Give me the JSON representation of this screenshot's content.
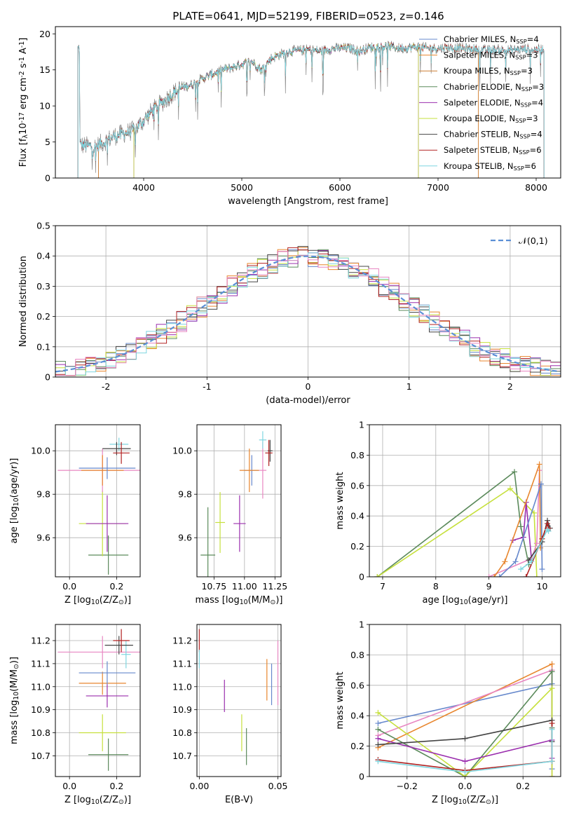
{
  "figure": {
    "title": "PLATE=0641, MJD=52199, FIBERID=0523, z=0.146"
  },
  "chart_data": [
    {
      "id": "spectrum",
      "type": "line",
      "xlabel": "wavelength [Angstrom, rest frame]",
      "ylabel": "Flux [f$_\\lambda$10$^{-17}$ erg cm$^{-2}$ s$^{-1}$ A$^{-1}$]",
      "xlim": [
        3100,
        8250
      ],
      "ylim": [
        0,
        21
      ],
      "xticks": [
        4000,
        5000,
        6000,
        7000,
        8000
      ],
      "yticks": [
        0,
        5,
        10,
        15,
        20
      ],
      "grid": false,
      "legend": "top-right",
      "spectrum_points": [
        [
          3350,
          4.6
        ],
        [
          3500,
          4.3
        ],
        [
          3700,
          5.8
        ],
        [
          3800,
          6.2
        ],
        [
          3900,
          6.6
        ],
        [
          4000,
          8.0
        ],
        [
          4100,
          9.5
        ],
        [
          4200,
          10.6
        ],
        [
          4300,
          11.8
        ],
        [
          4400,
          12.6
        ],
        [
          4500,
          13.0
        ],
        [
          4600,
          13.8
        ],
        [
          4700,
          14.4
        ],
        [
          4800,
          15.0
        ],
        [
          4900,
          15.3
        ],
        [
          5000,
          15.8
        ],
        [
          5100,
          16.2
        ],
        [
          5200,
          15.0
        ],
        [
          5300,
          16.6
        ],
        [
          5400,
          17.2
        ],
        [
          5500,
          17.6
        ],
        [
          5600,
          17.7
        ],
        [
          5700,
          17.8
        ],
        [
          5800,
          17.6
        ],
        [
          5900,
          17.9
        ],
        [
          6000,
          18.0
        ],
        [
          6100,
          18.0
        ],
        [
          6200,
          17.6
        ],
        [
          6300,
          18.1
        ],
        [
          6400,
          18.2
        ],
        [
          6500,
          18.3
        ],
        [
          6600,
          18.0
        ],
        [
          6700,
          18.1
        ],
        [
          6800,
          18.2
        ],
        [
          6900,
          18.0
        ],
        [
          7000,
          18.0
        ],
        [
          7100,
          18.1
        ],
        [
          7200,
          18.0
        ],
        [
          7300,
          17.9
        ],
        [
          7400,
          17.8
        ],
        [
          7500,
          17.7
        ],
        [
          7600,
          17.8
        ],
        [
          7700,
          17.7
        ],
        [
          7800,
          17.8
        ],
        [
          7900,
          17.9
        ],
        [
          8000,
          17.8
        ],
        [
          8080,
          17.9
        ]
      ],
      "series": [
        {
          "name": "Chabrier MILES, N$_{SSP}$=4",
          "color": "#6688cc",
          "range": [
            3540,
            6800
          ]
        },
        {
          "name": "Salpeter MILES, N$_{SSP}$=3",
          "color": "#e8862e",
          "range": [
            3540,
            7410
          ]
        },
        {
          "name": "Kroupa MILES, N$_{SSP}$=3",
          "color": "#cd7f32",
          "range": [
            3540,
            7410
          ]
        },
        {
          "name": "Chabrier ELODIE, N$_{SSP}$=3",
          "color": "#5b8a5b",
          "range": [
            3900,
            6800
          ]
        },
        {
          "name": "Salpeter ELODIE, N$_{SSP}$=4",
          "color": "#9b2fae",
          "range": [
            3900,
            6800
          ]
        },
        {
          "name": "Kroupa ELODIE, N$_{SSP}$=3",
          "color": "#c6e03c",
          "range": [
            3900,
            6800
          ]
        },
        {
          "name": "Chabrier STELIB, N$_{SSP}$=4",
          "color": "#444444",
          "range": [
            3330,
            8080
          ]
        },
        {
          "name": "Salpeter STELIB, N$_{SSP}$=6",
          "color": "#b22222",
          "range": [
            3330,
            8080
          ]
        },
        {
          "name": "Kroupa STELIB, N$_{SSP}$=6",
          "color": "#7fd6e0",
          "range": [
            3330,
            8080
          ]
        }
      ],
      "data_color": "#888888"
    },
    {
      "id": "residuals",
      "type": "histogram",
      "xlabel": "(data-model)/error",
      "ylabel": "Normed distribution",
      "xlim": [
        -2.5,
        2.5
      ],
      "ylim": [
        0,
        0.5
      ],
      "xticks": [
        -2,
        -1,
        0,
        1,
        2
      ],
      "yticks": [
        0.0,
        0.1,
        0.2,
        0.3,
        0.4,
        0.5
      ],
      "grid": true,
      "legend": "top-right",
      "legend_label": "$\\mathcal{N}(0,1)$",
      "bin_width": 0.1,
      "gaussian": {
        "mean": 0,
        "sigma": 1
      },
      "step_colors": [
        "#6688cc",
        "#e8862e",
        "#5b8a5b",
        "#9b2fae",
        "#c6e03c",
        "#444444",
        "#b22222",
        "#7fd6e0",
        "#e887c2"
      ]
    },
    {
      "id": "z_vs_age",
      "type": "errorbar",
      "xlabel": "Z [log$_{10}$(Z/Z$_\\odot$)]",
      "ylabel": "age  [log$_{10}$(age/yr)]",
      "xlim": [
        -0.06,
        0.3
      ],
      "ylim": [
        9.42,
        10.12
      ],
      "xticks": [
        0.0,
        0.2
      ],
      "xticklabels": [
        "0.0",
        "0.2"
      ],
      "yticks": [
        9.6,
        9.8,
        10.0
      ],
      "yticklabels": [
        "9.6",
        "9.8",
        "10.0"
      ],
      "grid": true,
      "points": [
        {
          "x": 0.165,
          "y": 9.52,
          "xerr": 0.085,
          "yerr": 0.09,
          "color": "#5b8a5b"
        },
        {
          "x": 0.14,
          "y": 9.665,
          "xerr": 0.1,
          "yerr": 0.15,
          "color": "#c6e03c"
        },
        {
          "x": 0.16,
          "y": 9.665,
          "xerr": 0.09,
          "yerr": 0.13,
          "color": "#9b2fae"
        },
        {
          "x": 0.14,
          "y": 9.91,
          "xerr": 0.19,
          "yerr": 0.1,
          "color": "#e887c2"
        },
        {
          "x": 0.14,
          "y": 9.91,
          "xerr": 0.09,
          "yerr": 0.07,
          "color": "#e8862e"
        },
        {
          "x": 0.16,
          "y": 9.92,
          "xerr": 0.12,
          "yerr": 0.05,
          "color": "#6688cc"
        },
        {
          "x": 0.21,
          "y": 10.03,
          "xerr": 0.04,
          "yerr": 0.03,
          "color": "#7fd6e0"
        },
        {
          "x": 0.2,
          "y": 10.01,
          "xerr": 0.06,
          "yerr": 0.03,
          "color": "#444444"
        },
        {
          "x": 0.22,
          "y": 9.99,
          "xerr": 0.035,
          "yerr": 0.05,
          "color": "#b22222"
        }
      ]
    },
    {
      "id": "mass_vs_age",
      "type": "errorbar",
      "xlabel": "mass [log$_{10}$(M/M$_\\odot$)]",
      "ylabel": "",
      "xlim": [
        10.61,
        11.3
      ],
      "ylim": [
        9.42,
        10.12
      ],
      "xticks": [
        10.75,
        11.0,
        11.25
      ],
      "xticklabels": [
        "10.75",
        "11.00",
        "11.25"
      ],
      "yticks": [
        9.6,
        9.8,
        10.0
      ],
      "yticklabels": [
        "9.6",
        "9.8",
        "10.0"
      ],
      "grid": true,
      "points": [
        {
          "x": 10.7,
          "y": 9.52,
          "xerr": 0.06,
          "yerr": 0.22,
          "color": "#5b8a5b"
        },
        {
          "x": 10.8,
          "y": 9.67,
          "xerr": 0.04,
          "yerr": 0.14,
          "color": "#c6e03c"
        },
        {
          "x": 10.96,
          "y": 9.665,
          "xerr": 0.05,
          "yerr": 0.13,
          "color": "#9b2fae"
        },
        {
          "x": 11.06,
          "y": 9.91,
          "xerr": 0.06,
          "yerr": 0.07,
          "color": "#6688cc"
        },
        {
          "x": 11.04,
          "y": 9.91,
          "xerr": 0.08,
          "yerr": 0.1,
          "color": "#e8862e"
        },
        {
          "x": 11.15,
          "y": 9.91,
          "xerr": 0.03,
          "yerr": 0.13,
          "color": "#e887c2"
        },
        {
          "x": 11.15,
          "y": 10.05,
          "xerr": 0.03,
          "yerr": 0.04,
          "color": "#7fd6e0"
        },
        {
          "x": 11.21,
          "y": 10.0,
          "xerr": 0.02,
          "yerr": 0.05,
          "color": "#444444"
        },
        {
          "x": 11.2,
          "y": 9.99,
          "xerr": 0.03,
          "yerr": 0.06,
          "color": "#b22222"
        }
      ]
    },
    {
      "id": "age_vs_weight",
      "type": "line",
      "xlabel": "age  [log$_{10}$(age/yr)]",
      "ylabel": "mass weight",
      "xlim": [
        6.75,
        10.35
      ],
      "ylim": [
        0,
        1
      ],
      "xticks": [
        7,
        8,
        9,
        10
      ],
      "yticks": [
        0.0,
        0.2,
        0.4,
        0.6,
        0.8,
        1.0
      ],
      "grid": true,
      "series": [
        {
          "color": "#5b8a5b",
          "x": [
            6.9,
            9.48,
            9.6,
            9.75
          ],
          "y": [
            0.0,
            0.69,
            0.33,
            0.08
          ]
        },
        {
          "color": "#c6e03c",
          "x": [
            6.9,
            9.4,
            9.85,
            9.9
          ],
          "y": [
            0.0,
            0.58,
            0.42,
            0.0
          ]
        },
        {
          "color": "#9b2fae",
          "x": [
            9.45,
            9.65,
            9.7,
            9.8
          ],
          "y": [
            0.24,
            0.26,
            0.49,
            0.12
          ]
        },
        {
          "color": "#e887c2",
          "x": [
            9.0,
            9.8,
            9.9,
            9.95
          ],
          "y": [
            0.0,
            0.12,
            0.22,
            0.7
          ]
        },
        {
          "color": "#e8862e",
          "x": [
            9.1,
            9.3,
            9.95,
            9.97
          ],
          "y": [
            0.0,
            0.1,
            0.74,
            0.19
          ]
        },
        {
          "color": "#6688cc",
          "x": [
            9.2,
            9.5,
            9.98,
            10.0
          ],
          "y": [
            0.0,
            0.1,
            0.61,
            0.05
          ]
        },
        {
          "color": "#444444",
          "x": [
            9.75,
            10.0,
            10.1,
            10.15
          ],
          "y": [
            0.11,
            0.23,
            0.37,
            0.32
          ]
        },
        {
          "color": "#b22222",
          "x": [
            9.7,
            10.0,
            10.1,
            10.12
          ],
          "y": [
            0.0,
            0.25,
            0.35,
            0.32
          ]
        },
        {
          "color": "#7fd6e0",
          "x": [
            9.6,
            9.8,
            10.1,
            10.12
          ],
          "y": [
            0.05,
            0.1,
            0.31,
            0.3
          ]
        }
      ]
    },
    {
      "id": "z_vs_mass",
      "type": "errorbar",
      "xlabel": "Z [log$_{10}$(Z/Z$_\\odot$)]",
      "ylabel": "mass [log$_{10}$(M/M$_\\odot$)]",
      "xlim": [
        -0.06,
        0.3
      ],
      "ylim": [
        10.61,
        11.27
      ],
      "xticks": [
        0.0,
        0.2
      ],
      "xticklabels": [
        "0.0",
        "0.2"
      ],
      "yticks": [
        10.7,
        10.8,
        10.9,
        11.0,
        11.1,
        11.2
      ],
      "yticklabels": [
        "10.7",
        "10.8",
        "10.9",
        "11.0",
        "11.1",
        "11.2"
      ],
      "grid": true,
      "points": [
        {
          "x": 0.165,
          "y": 10.705,
          "xerr": 0.085,
          "yerr": 0.07,
          "color": "#5b8a5b"
        },
        {
          "x": 0.14,
          "y": 10.8,
          "xerr": 0.1,
          "yerr": 0.08,
          "color": "#c6e03c"
        },
        {
          "x": 0.16,
          "y": 10.96,
          "xerr": 0.09,
          "yerr": 0.05,
          "color": "#9b2fae"
        },
        {
          "x": 0.14,
          "y": 11.015,
          "xerr": 0.1,
          "yerr": 0.05,
          "color": "#e8862e"
        },
        {
          "x": 0.16,
          "y": 11.06,
          "xerr": 0.12,
          "yerr": 0.05,
          "color": "#6688cc"
        },
        {
          "x": 0.14,
          "y": 11.15,
          "xerr": 0.19,
          "yerr": 0.07,
          "color": "#e887c2"
        },
        {
          "x": 0.24,
          "y": 11.14,
          "xerr": 0.02,
          "yerr": 0.06,
          "color": "#7fd6e0"
        },
        {
          "x": 0.21,
          "y": 11.18,
          "xerr": 0.06,
          "yerr": 0.04,
          "color": "#444444"
        },
        {
          "x": 0.22,
          "y": 11.2,
          "xerr": 0.035,
          "yerr": 0.05,
          "color": "#b22222"
        }
      ]
    },
    {
      "id": "ebv_vs_mass",
      "type": "errorbar",
      "xlabel": "E(B-V)",
      "ylabel": "",
      "xlim": [
        -0.0015,
        0.052
      ],
      "ylim": [
        10.61,
        11.27
      ],
      "xticks": [
        0.0,
        0.05
      ],
      "xticklabels": [
        "0.00",
        "0.05"
      ],
      "yticks": [
        10.7,
        10.8,
        10.9,
        11.0,
        11.1,
        11.2
      ],
      "yticklabels": [
        "10.7",
        "10.8",
        "10.9",
        "11.0",
        "11.1",
        "11.2"
      ],
      "grid": true,
      "points": [
        {
          "x": 0.0,
          "y": 11.2,
          "xerr": 0.0,
          "yerr": 0.05,
          "color": "#b22222"
        },
        {
          "x": 0.0,
          "y": 11.12,
          "xerr": 0.0,
          "yerr": 0.04,
          "color": "#7fd6e0"
        },
        {
          "x": 0.016,
          "y": 10.96,
          "xerr": 0.0,
          "yerr": 0.07,
          "color": "#9b2fae"
        },
        {
          "x": 0.027,
          "y": 10.8,
          "xerr": 0.0,
          "yerr": 0.08,
          "color": "#c6e03c"
        },
        {
          "x": 0.03,
          "y": 10.74,
          "xerr": 0.0,
          "yerr": 0.08,
          "color": "#5b8a5b"
        },
        {
          "x": 0.043,
          "y": 11.03,
          "xerr": 0.0,
          "yerr": 0.09,
          "color": "#e8862e"
        },
        {
          "x": 0.046,
          "y": 11.01,
          "xerr": 0.0,
          "yerr": 0.09,
          "color": "#6688cc"
        },
        {
          "x": 0.05,
          "y": 11.06,
          "xerr": 0.0,
          "yerr": 0.14,
          "color": "#e887c2"
        }
      ]
    },
    {
      "id": "z_vs_weight",
      "type": "line",
      "xlabel": "Z [log$_{10}$(Z/Z$_\\odot$)]",
      "ylabel": "mass weight",
      "xlim": [
        -0.33,
        0.33
      ],
      "ylim": [
        0,
        1
      ],
      "xticks": [
        -0.2,
        0.0,
        0.2
      ],
      "xticklabels": [
        "−0.2",
        "0.0",
        "0.2"
      ],
      "yticks": [
        0.0,
        0.2,
        0.4,
        0.6,
        0.8,
        1.0
      ],
      "grid": true,
      "series": [
        {
          "color": "#6688cc",
          "x": [
            -0.3,
            0.3,
            0.3
          ],
          "y": [
            0.35,
            0.61,
            0.05
          ]
        },
        {
          "color": "#e8862e",
          "x": [
            -0.3,
            0.3,
            0.3
          ],
          "y": [
            0.19,
            0.74,
            0.1
          ]
        },
        {
          "color": "#e887c2",
          "x": [
            -0.3,
            0.3,
            0.3
          ],
          "y": [
            0.27,
            0.7,
            0.0
          ]
        },
        {
          "color": "#5b8a5b",
          "x": [
            -0.3,
            0.0,
            0.3,
            0.3
          ],
          "y": [
            0.31,
            0.0,
            0.69,
            0.32
          ]
        },
        {
          "color": "#c6e03c",
          "x": [
            -0.3,
            0.0,
            0.3,
            0.3
          ],
          "y": [
            0.42,
            0.0,
            0.58,
            0.0
          ]
        },
        {
          "color": "#9b2fae",
          "x": [
            -0.3,
            0.0,
            0.3,
            0.3
          ],
          "y": [
            0.25,
            0.1,
            0.24,
            0.12
          ]
        },
        {
          "color": "#444444",
          "x": [
            -0.3,
            0.0,
            0.3,
            0.3
          ],
          "y": [
            0.21,
            0.25,
            0.37,
            0.23
          ]
        },
        {
          "color": "#b22222",
          "x": [
            -0.3,
            0.0,
            0.3,
            0.3
          ],
          "y": [
            0.11,
            0.04,
            0.1,
            0.35
          ]
        },
        {
          "color": "#7fd6e0",
          "x": [
            -0.3,
            0.0,
            0.3,
            0.3
          ],
          "y": [
            0.1,
            0.03,
            0.1,
            0.31
          ]
        }
      ]
    }
  ]
}
